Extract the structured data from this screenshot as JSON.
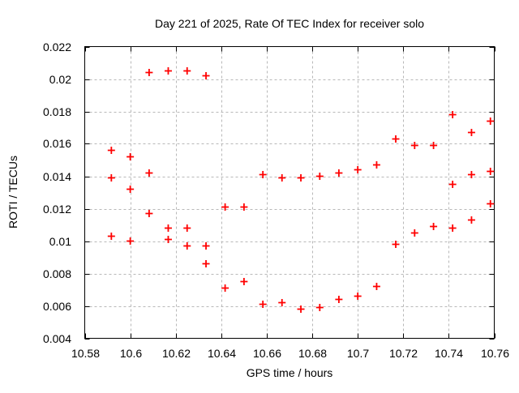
{
  "window": {
    "background": "#ffffff"
  },
  "chart_data": {
    "type": "scatter",
    "title": "Day 221 of 2025, Rate Of TEC Index for receiver solo",
    "xlabel": "GPS time / hours",
    "ylabel": "ROTI / TECUs",
    "xlim": [
      10.58,
      10.76
    ],
    "ylim": [
      0.004,
      0.022
    ],
    "xticks": {
      "values": [
        10.58,
        10.6,
        10.62,
        10.64,
        10.66,
        10.68,
        10.7,
        10.72,
        10.74,
        10.76
      ],
      "labels": [
        "10.58",
        "10.6",
        "10.62",
        "10.64",
        "10.66",
        "10.68",
        "10.7",
        "10.72",
        "10.74",
        "10.76"
      ]
    },
    "yticks": {
      "values": [
        0.004,
        0.006,
        0.008,
        0.01,
        0.012,
        0.014,
        0.016,
        0.018,
        0.02,
        0.022
      ],
      "labels": [
        "0.004",
        "0.006",
        "0.008",
        "0.01",
        "0.012",
        "0.014",
        "0.016",
        "0.018",
        "0.02",
        "0.022"
      ]
    },
    "grid": true,
    "legend": "none",
    "marker": {
      "symbol": "plus",
      "color": "#ff0000",
      "size": 9,
      "stroke_width": 1.8
    },
    "grid_color": "#b8b8b8",
    "axis_color": "#000000",
    "text_color": "#000000",
    "series": [
      {
        "name": "ROTI",
        "points": [
          [
            10.5917,
            0.0156
          ],
          [
            10.5917,
            0.0139
          ],
          [
            10.5917,
            0.0103
          ],
          [
            10.6,
            0.0152
          ],
          [
            10.6,
            0.0132
          ],
          [
            10.6,
            0.01
          ],
          [
            10.6083,
            0.0204
          ],
          [
            10.6083,
            0.0142
          ],
          [
            10.6083,
            0.0117
          ],
          [
            10.6167,
            0.0205
          ],
          [
            10.6167,
            0.0108
          ],
          [
            10.6167,
            0.0101
          ],
          [
            10.625,
            0.0205
          ],
          [
            10.625,
            0.0108
          ],
          [
            10.625,
            0.0097
          ],
          [
            10.6333,
            0.0202
          ],
          [
            10.6333,
            0.0097
          ],
          [
            10.6333,
            0.0086
          ],
          [
            10.6417,
            0.0121
          ],
          [
            10.6417,
            0.0071
          ],
          [
            10.65,
            0.0121
          ],
          [
            10.65,
            0.0075
          ],
          [
            10.6583,
            0.0141
          ],
          [
            10.6583,
            0.0061
          ],
          [
            10.6667,
            0.0139
          ],
          [
            10.6667,
            0.0062
          ],
          [
            10.675,
            0.0139
          ],
          [
            10.675,
            0.0058
          ],
          [
            10.6833,
            0.014
          ],
          [
            10.6833,
            0.0059
          ],
          [
            10.6917,
            0.0142
          ],
          [
            10.6917,
            0.0064
          ],
          [
            10.7,
            0.0144
          ],
          [
            10.7,
            0.0066
          ],
          [
            10.7083,
            0.0147
          ],
          [
            10.7083,
            0.0072
          ],
          [
            10.7167,
            0.0163
          ],
          [
            10.7167,
            0.0098
          ],
          [
            10.725,
            0.0159
          ],
          [
            10.725,
            0.0105
          ],
          [
            10.7333,
            0.0159
          ],
          [
            10.7333,
            0.0109
          ],
          [
            10.7417,
            0.0178
          ],
          [
            10.7417,
            0.0135
          ],
          [
            10.7417,
            0.0108
          ],
          [
            10.75,
            0.0167
          ],
          [
            10.75,
            0.0141
          ],
          [
            10.75,
            0.0113
          ],
          [
            10.7583,
            0.0174
          ],
          [
            10.7583,
            0.0143
          ],
          [
            10.7583,
            0.0123
          ]
        ]
      }
    ]
  }
}
